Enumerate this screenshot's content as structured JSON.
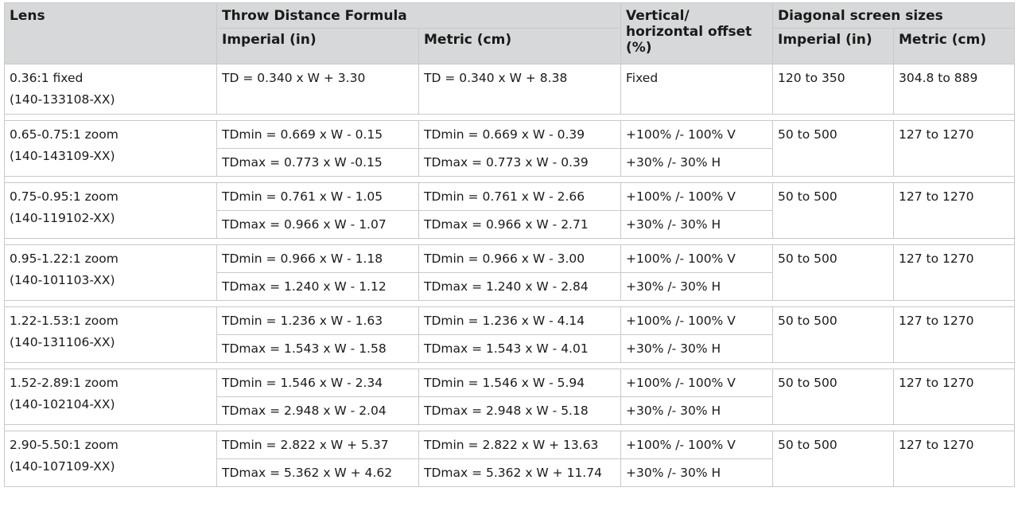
{
  "headers": {
    "lens": "Lens",
    "throw": "Throw Distance Formula",
    "imperial": "Imperial (in)",
    "metric": "Metric (cm)",
    "offset_l1": "Vertical/",
    "offset_l2": "horizontal offset",
    "offset_l3": "(%)",
    "diag": "Diagonal screen sizes",
    "diag_imperial": "Imperial (in)",
    "diag_metric": "Metric (cm)"
  },
  "fixed": {
    "lens_name": "0.36:1 fixed",
    "part": "(140-133108-XX)",
    "imperial": "TD = 0.340 x W + 3.30",
    "metric": "TD = 0.340 x W + 8.38",
    "offset": "Fixed",
    "diag_imperial": "120 to 350",
    "diag_metric": "304.8 to 889"
  },
  "zooms": [
    {
      "lens_name": "0.65-0.75:1 zoom",
      "part": "(140-143109-XX)",
      "min_imp": "TDmin = 0.669 x W - 0.15",
      "min_met": "TDmin = 0.669 x W - 0.39",
      "max_imp": "TDmax = 0.773 x W -0.15",
      "max_met": "TDmax = 0.773 x W - 0.39",
      "off_v": "+100% /- 100% V",
      "off_h": "+30% /- 30% H",
      "diag_imperial": "50 to 500",
      "diag_metric": "127 to 1270"
    },
    {
      "lens_name": "0.75-0.95:1 zoom",
      "part": "(140-119102-XX)",
      "min_imp": "TDmin = 0.761 x W - 1.05",
      "min_met": "TDmin = 0.761 x W - 2.66",
      "max_imp": "TDmax = 0.966 x W - 1.07",
      "max_met": "TDmax = 0.966 x W - 2.71",
      "off_v": "+100% /- 100% V",
      "off_h": "+30% /- 30% H",
      "diag_imperial": "50 to 500",
      "diag_metric": "127 to 1270"
    },
    {
      "lens_name": "0.95-1.22:1 zoom",
      "part": "(140-101103-XX)",
      "min_imp": "TDmin = 0.966 x W - 1.18",
      "min_met": "TDmin = 0.966 x W - 3.00",
      "max_imp": "TDmax = 1.240 x W - 1.12",
      "max_met": "TDmax = 1.240 x W - 2.84",
      "off_v": "+100% /- 100% V",
      "off_h": "+30% /- 30% H",
      "diag_imperial": "50 to 500",
      "diag_metric": "127 to 1270"
    },
    {
      "lens_name": "1.22-1.53:1 zoom",
      "part": "(140-131106-XX)",
      "min_imp": "TDmin = 1.236 x W - 1.63",
      "min_met": "TDmin = 1.236 x W - 4.14",
      "max_imp": "TDmax = 1.543 x W - 1.58",
      "max_met": "TDmax = 1.543 x W - 4.01",
      "off_v": "+100% /- 100% V",
      "off_h": "+30% /- 30% H",
      "diag_imperial": "50 to 500",
      "diag_metric": "127 to 1270"
    },
    {
      "lens_name": "1.52-2.89:1 zoom",
      "part": "(140-102104-XX)",
      "min_imp": "TDmin = 1.546 x W - 2.34",
      "min_met": "TDmin = 1.546 x W - 5.94",
      "max_imp": "TDmax = 2.948 x W - 2.04",
      "max_met": "TDmax = 2.948 x W - 5.18",
      "off_v": "+100% /- 100% V",
      "off_h": "+30% /- 30% H",
      "diag_imperial": "50 to 500",
      "diag_metric": "127 to 1270"
    },
    {
      "lens_name": "2.90-5.50:1 zoom",
      "part": "(140-107109-XX)",
      "min_imp": "TDmin = 2.822 x W + 5.37",
      "min_met": "TDmin = 2.822 x W + 13.63",
      "max_imp": "TDmax = 5.362 x W + 4.62",
      "max_met": "TDmax = 5.362 x W + 11.74",
      "off_v": "+100% /- 100% V",
      "off_h": "+30% /- 30% H",
      "diag_imperial": "50 to 500",
      "diag_metric": "127 to 1270"
    }
  ]
}
